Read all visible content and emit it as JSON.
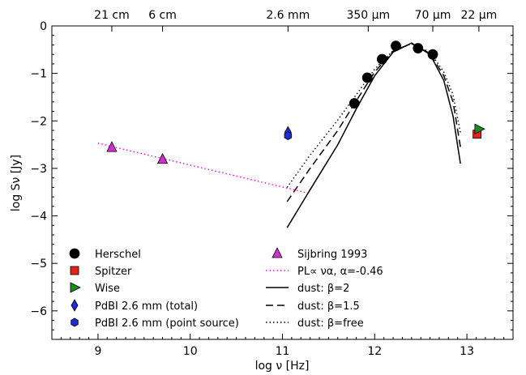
{
  "chart_data": {
    "type": "scatter",
    "xlabel": "log ν [Hz]",
    "ylabel": "log Sν [Jy]",
    "xlim": [
      8.5,
      13.5
    ],
    "ylim": [
      -6.6,
      0
    ],
    "x_ticks": [
      "9",
      "10",
      "11",
      "12",
      "13"
    ],
    "y_ticks": [
      "0",
      "−1",
      "−2",
      "−3",
      "−4",
      "−5",
      "−6"
    ],
    "top_axis_labels": [
      {
        "x": 9.15,
        "label": "21 cm"
      },
      {
        "x": 9.7,
        "label": "6 cm"
      },
      {
        "x": 11.06,
        "label": "2.6 mm"
      },
      {
        "x": 11.93,
        "label": "350 μm"
      },
      {
        "x": 12.63,
        "label": "70 μm"
      },
      {
        "x": 13.13,
        "label": "22 μm"
      }
    ],
    "grid": false,
    "legend_position": "bottom",
    "series": [
      {
        "name": "Herschel",
        "marker": "circle",
        "color": "#000000",
        "points": [
          [
            11.78,
            -1.63
          ],
          [
            11.92,
            -1.09
          ],
          [
            12.08,
            -0.7
          ],
          [
            12.23,
            -0.42
          ],
          [
            12.47,
            -0.47
          ],
          [
            12.63,
            -0.6
          ]
        ]
      },
      {
        "name": "Spitzer",
        "marker": "square",
        "color": "#e8211b",
        "points": [
          [
            13.11,
            -2.28
          ]
        ]
      },
      {
        "name": "Wise",
        "marker": "triangle-right",
        "color": "#1e8b1e",
        "points": [
          [
            13.13,
            -2.17
          ]
        ]
      },
      {
        "name": "PdBI 2.6 mm (total)",
        "marker": "diamond",
        "color": "#1f2bd6",
        "points": [
          [
            11.06,
            -2.24
          ]
        ]
      },
      {
        "name": "PdBI 2.6 mm (point source)",
        "marker": "hexagon",
        "color": "#1f2bd6",
        "points": [
          [
            11.06,
            -2.31
          ]
        ]
      },
      {
        "name": "Sijbring 1993",
        "marker": "triangle-up",
        "color": "#cc33cc",
        "points": [
          [
            9.15,
            -2.56
          ],
          [
            9.7,
            -2.81
          ]
        ]
      }
    ],
    "lines": [
      {
        "name": "PL∝ να, α=-0.46",
        "style": "dotted",
        "color": "#ff00ff",
        "points": [
          [
            9.0,
            -2.47
          ],
          [
            11.3,
            -3.53
          ]
        ]
      },
      {
        "name": "dust: β=2",
        "style": "solid",
        "color": "#000000",
        "points": [
          [
            11.05,
            -4.25
          ],
          [
            11.3,
            -3.45
          ],
          [
            11.6,
            -2.5
          ],
          [
            11.8,
            -1.75
          ],
          [
            12.0,
            -1.05
          ],
          [
            12.2,
            -0.55
          ],
          [
            12.4,
            -0.36
          ],
          [
            12.6,
            -0.6
          ],
          [
            12.75,
            -1.15
          ],
          [
            12.85,
            -1.9
          ],
          [
            12.93,
            -2.9
          ]
        ]
      },
      {
        "name": "dust: β=1.5",
        "style": "dashed",
        "color": "#000000",
        "points": [
          [
            11.05,
            -3.7
          ],
          [
            11.3,
            -3.0
          ],
          [
            11.6,
            -2.2
          ],
          [
            11.8,
            -1.58
          ],
          [
            12.0,
            -0.97
          ],
          [
            12.2,
            -0.53
          ],
          [
            12.4,
            -0.37
          ],
          [
            12.6,
            -0.58
          ],
          [
            12.75,
            -1.05
          ],
          [
            12.85,
            -1.6
          ],
          [
            12.93,
            -2.55
          ]
        ]
      },
      {
        "name": "dust: β=free",
        "style": "dotted",
        "color": "#000000",
        "points": [
          [
            11.05,
            -3.4
          ],
          [
            11.3,
            -2.72
          ],
          [
            11.6,
            -1.98
          ],
          [
            11.8,
            -1.45
          ],
          [
            12.0,
            -0.91
          ],
          [
            12.2,
            -0.52
          ],
          [
            12.4,
            -0.38
          ],
          [
            12.6,
            -0.55
          ],
          [
            12.75,
            -0.97
          ],
          [
            12.85,
            -1.45
          ],
          [
            12.93,
            -2.25
          ]
        ]
      }
    ],
    "legend_entries": [
      {
        "series": "Herschel",
        "marker": "circle",
        "color": "#000000"
      },
      {
        "series": "Spitzer",
        "marker": "square",
        "color": "#e8211b"
      },
      {
        "series": "Wise",
        "marker": "triangle-right",
        "color": "#1e8b1e"
      },
      {
        "series": "PdBI 2.6 mm (total)",
        "marker": "diamond",
        "color": "#1f2bd6"
      },
      {
        "series": "PdBI 2.6 mm (point source)",
        "marker": "hexagon",
        "color": "#1f2bd6"
      },
      {
        "series": "Sijbring 1993",
        "marker": "triangle-up",
        "color": "#cc33cc"
      },
      {
        "series": "PL∝ να, α=-0.46",
        "line": "dotted",
        "color": "#ff00ff"
      },
      {
        "series": "dust: β=2",
        "line": "solid",
        "color": "#000000"
      },
      {
        "series": "dust: β=1.5",
        "line": "dashed",
        "color": "#000000"
      },
      {
        "series": "dust: β=free",
        "line": "dotted",
        "color": "#000000"
      }
    ]
  }
}
